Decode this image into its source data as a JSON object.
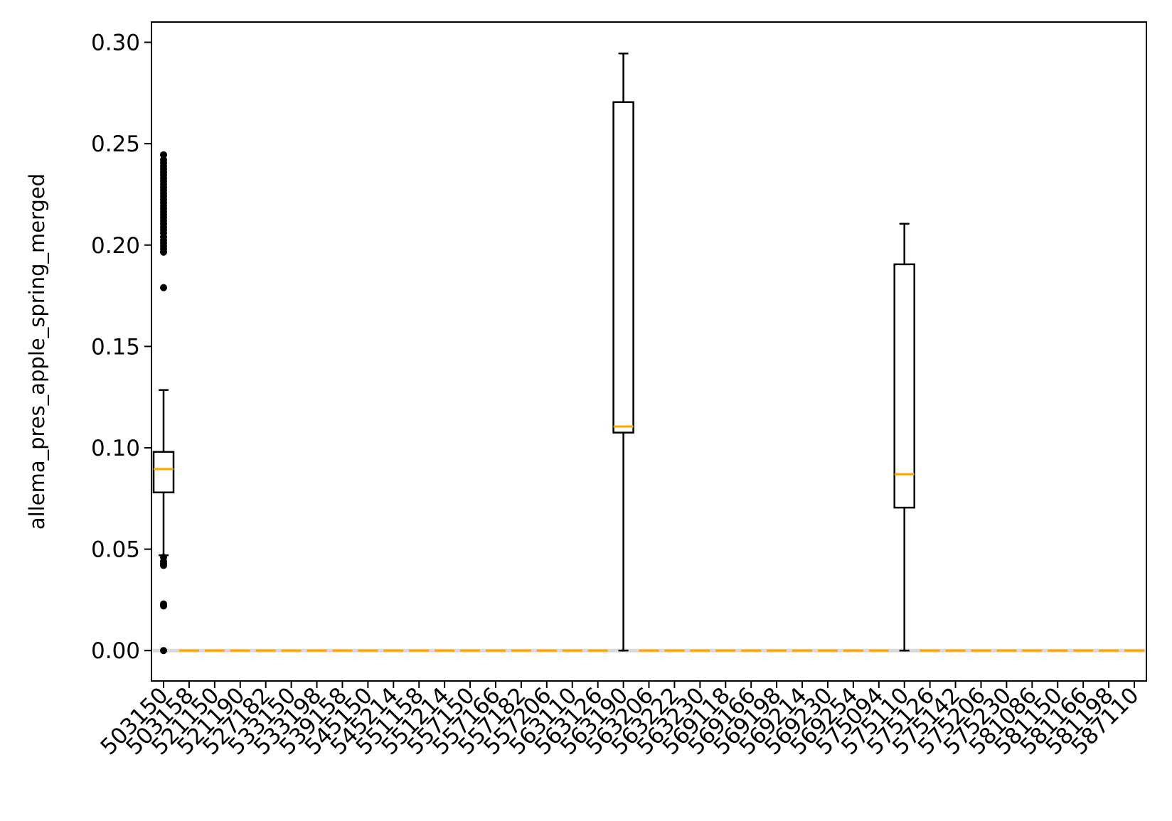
{
  "chart_data": {
    "type": "box",
    "title": "",
    "xlabel": "",
    "ylabel": "allema_pres_apple_spring_merged",
    "ylim": [
      -0.015,
      0.31
    ],
    "y_ticks": [
      0.0,
      0.05,
      0.1,
      0.15,
      0.2,
      0.25,
      0.3
    ],
    "y_tick_labels": [
      "0.00",
      "0.05",
      "0.10",
      "0.15",
      "0.20",
      "0.25",
      "0.30"
    ],
    "x_tick_rotation_deg": 45,
    "grid": false,
    "legend": "none",
    "colors": {
      "box": "#000000",
      "median": "#ffa500",
      "outlier": "#000000",
      "zero_band": "#d9d9d9"
    },
    "categories": [
      "503150",
      "503158",
      "521150",
      "521190",
      "527182",
      "533150",
      "533198",
      "539158",
      "545150",
      "545214",
      "551158",
      "551214",
      "557150",
      "557166",
      "557182",
      "557206",
      "563110",
      "563126",
      "563190",
      "563206",
      "563222",
      "563230",
      "569118",
      "569166",
      "569198",
      "569214",
      "569230",
      "569254",
      "575094",
      "575110",
      "575126",
      "575142",
      "575206",
      "575230",
      "581086",
      "581150",
      "581166",
      "581198",
      "587110"
    ],
    "boxes": [
      {
        "category": "503150",
        "whisker_low": 0.047,
        "q1": 0.078,
        "median": 0.0895,
        "q3": 0.098,
        "whisker_high": 0.1285,
        "outliers": [
          0.0,
          0.022,
          0.0225,
          0.023,
          0.042,
          0.043,
          0.044,
          0.046,
          0.179,
          0.1965,
          0.198,
          0.1995,
          0.201,
          0.2025,
          0.204,
          0.206,
          0.2075,
          0.209,
          0.2105,
          0.212,
          0.2135,
          0.215,
          0.2165,
          0.218,
          0.2195,
          0.221,
          0.2225,
          0.224,
          0.2255,
          0.227,
          0.2285,
          0.23,
          0.2315,
          0.233,
          0.2345,
          0.236,
          0.2375,
          0.239,
          0.2405,
          0.242,
          0.2445
        ]
      },
      {
        "category": "503158",
        "whisker_low": 0,
        "q1": 0,
        "median": 0,
        "q3": 0,
        "whisker_high": 0,
        "outliers": []
      },
      {
        "category": "521150",
        "whisker_low": 0,
        "q1": 0,
        "median": 0,
        "q3": 0,
        "whisker_high": 0,
        "outliers": []
      },
      {
        "category": "521190",
        "whisker_low": 0,
        "q1": 0,
        "median": 0,
        "q3": 0,
        "whisker_high": 0,
        "outliers": []
      },
      {
        "category": "527182",
        "whisker_low": 0,
        "q1": 0,
        "median": 0,
        "q3": 0,
        "whisker_high": 0,
        "outliers": []
      },
      {
        "category": "533150",
        "whisker_low": 0,
        "q1": 0,
        "median": 0,
        "q3": 0,
        "whisker_high": 0,
        "outliers": []
      },
      {
        "category": "533198",
        "whisker_low": 0,
        "q1": 0,
        "median": 0,
        "q3": 0,
        "whisker_high": 0,
        "outliers": []
      },
      {
        "category": "539158",
        "whisker_low": 0,
        "q1": 0,
        "median": 0,
        "q3": 0,
        "whisker_high": 0,
        "outliers": []
      },
      {
        "category": "545150",
        "whisker_low": 0,
        "q1": 0,
        "median": 0,
        "q3": 0,
        "whisker_high": 0,
        "outliers": []
      },
      {
        "category": "545214",
        "whisker_low": 0,
        "q1": 0,
        "median": 0,
        "q3": 0,
        "whisker_high": 0,
        "outliers": []
      },
      {
        "category": "551158",
        "whisker_low": 0,
        "q1": 0,
        "median": 0,
        "q3": 0,
        "whisker_high": 0,
        "outliers": []
      },
      {
        "category": "551214",
        "whisker_low": 0,
        "q1": 0,
        "median": 0,
        "q3": 0,
        "whisker_high": 0,
        "outliers": []
      },
      {
        "category": "557150",
        "whisker_low": 0,
        "q1": 0,
        "median": 0,
        "q3": 0,
        "whisker_high": 0,
        "outliers": []
      },
      {
        "category": "557166",
        "whisker_low": 0,
        "q1": 0,
        "median": 0,
        "q3": 0,
        "whisker_high": 0,
        "outliers": []
      },
      {
        "category": "557182",
        "whisker_low": 0,
        "q1": 0,
        "median": 0,
        "q3": 0,
        "whisker_high": 0,
        "outliers": []
      },
      {
        "category": "557206",
        "whisker_low": 0,
        "q1": 0,
        "median": 0,
        "q3": 0,
        "whisker_high": 0,
        "outliers": []
      },
      {
        "category": "563110",
        "whisker_low": 0,
        "q1": 0,
        "median": 0,
        "q3": 0,
        "whisker_high": 0,
        "outliers": []
      },
      {
        "category": "563126",
        "whisker_low": 0,
        "q1": 0,
        "median": 0,
        "q3": 0,
        "whisker_high": 0,
        "outliers": []
      },
      {
        "category": "563190",
        "whisker_low": 0.0,
        "q1": 0.1075,
        "median": 0.1105,
        "q3": 0.2705,
        "whisker_high": 0.2945,
        "outliers": []
      },
      {
        "category": "563206",
        "whisker_low": 0,
        "q1": 0,
        "median": 0,
        "q3": 0,
        "whisker_high": 0,
        "outliers": []
      },
      {
        "category": "563222",
        "whisker_low": 0,
        "q1": 0,
        "median": 0,
        "q3": 0,
        "whisker_high": 0,
        "outliers": []
      },
      {
        "category": "563230",
        "whisker_low": 0,
        "q1": 0,
        "median": 0,
        "q3": 0,
        "whisker_high": 0,
        "outliers": []
      },
      {
        "category": "569118",
        "whisker_low": 0,
        "q1": 0,
        "median": 0,
        "q3": 0,
        "whisker_high": 0,
        "outliers": []
      },
      {
        "category": "569166",
        "whisker_low": 0,
        "q1": 0,
        "median": 0,
        "q3": 0,
        "whisker_high": 0,
        "outliers": []
      },
      {
        "category": "569198",
        "whisker_low": 0,
        "q1": 0,
        "median": 0,
        "q3": 0,
        "whisker_high": 0,
        "outliers": []
      },
      {
        "category": "569214",
        "whisker_low": 0,
        "q1": 0,
        "median": 0,
        "q3": 0,
        "whisker_high": 0,
        "outliers": []
      },
      {
        "category": "569230",
        "whisker_low": 0,
        "q1": 0,
        "median": 0,
        "q3": 0,
        "whisker_high": 0,
        "outliers": []
      },
      {
        "category": "569254",
        "whisker_low": 0,
        "q1": 0,
        "median": 0,
        "q3": 0,
        "whisker_high": 0,
        "outliers": []
      },
      {
        "category": "575094",
        "whisker_low": 0,
        "q1": 0,
        "median": 0,
        "q3": 0,
        "whisker_high": 0,
        "outliers": []
      },
      {
        "category": "575110",
        "whisker_low": 0.0,
        "q1": 0.0705,
        "median": 0.087,
        "q3": 0.1905,
        "whisker_high": 0.2105,
        "outliers": []
      },
      {
        "category": "575126",
        "whisker_low": 0,
        "q1": 0,
        "median": 0,
        "q3": 0,
        "whisker_high": 0,
        "outliers": []
      },
      {
        "category": "575142",
        "whisker_low": 0,
        "q1": 0,
        "median": 0,
        "q3": 0,
        "whisker_high": 0,
        "outliers": []
      },
      {
        "category": "575206",
        "whisker_low": 0,
        "q1": 0,
        "median": 0,
        "q3": 0,
        "whisker_high": 0,
        "outliers": []
      },
      {
        "category": "575230",
        "whisker_low": 0,
        "q1": 0,
        "median": 0,
        "q3": 0,
        "whisker_high": 0,
        "outliers": []
      },
      {
        "category": "581086",
        "whisker_low": 0,
        "q1": 0,
        "median": 0,
        "q3": 0,
        "whisker_high": 0,
        "outliers": []
      },
      {
        "category": "581150",
        "whisker_low": 0,
        "q1": 0,
        "median": 0,
        "q3": 0,
        "whisker_high": 0,
        "outliers": []
      },
      {
        "category": "581166",
        "whisker_low": 0,
        "q1": 0,
        "median": 0,
        "q3": 0,
        "whisker_high": 0,
        "outliers": []
      },
      {
        "category": "581198",
        "whisker_low": 0,
        "q1": 0,
        "median": 0,
        "q3": 0,
        "whisker_high": 0,
        "outliers": []
      },
      {
        "category": "587110",
        "whisker_low": 0,
        "q1": 0,
        "median": 0,
        "q3": 0,
        "whisker_high": 0,
        "outliers": []
      }
    ]
  }
}
